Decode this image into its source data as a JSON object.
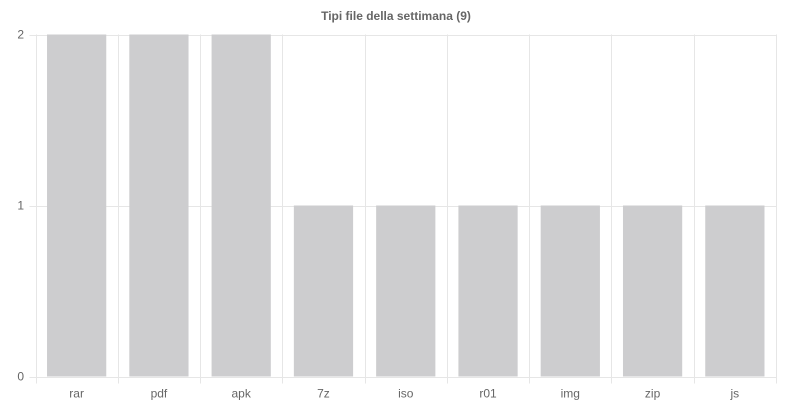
{
  "chart_data": {
    "type": "bar",
    "title": "Tipi file della settimana (9)",
    "categories": [
      "rar",
      "pdf",
      "apk",
      "7z",
      "iso",
      "r01",
      "img",
      "zip",
      "js"
    ],
    "values": [
      2,
      2,
      2,
      1,
      1,
      1,
      1,
      1,
      1
    ],
    "color": "#cdcdcf",
    "ylim": [
      0,
      2
    ],
    "yticks": [
      0,
      1,
      2
    ],
    "grid": true
  }
}
